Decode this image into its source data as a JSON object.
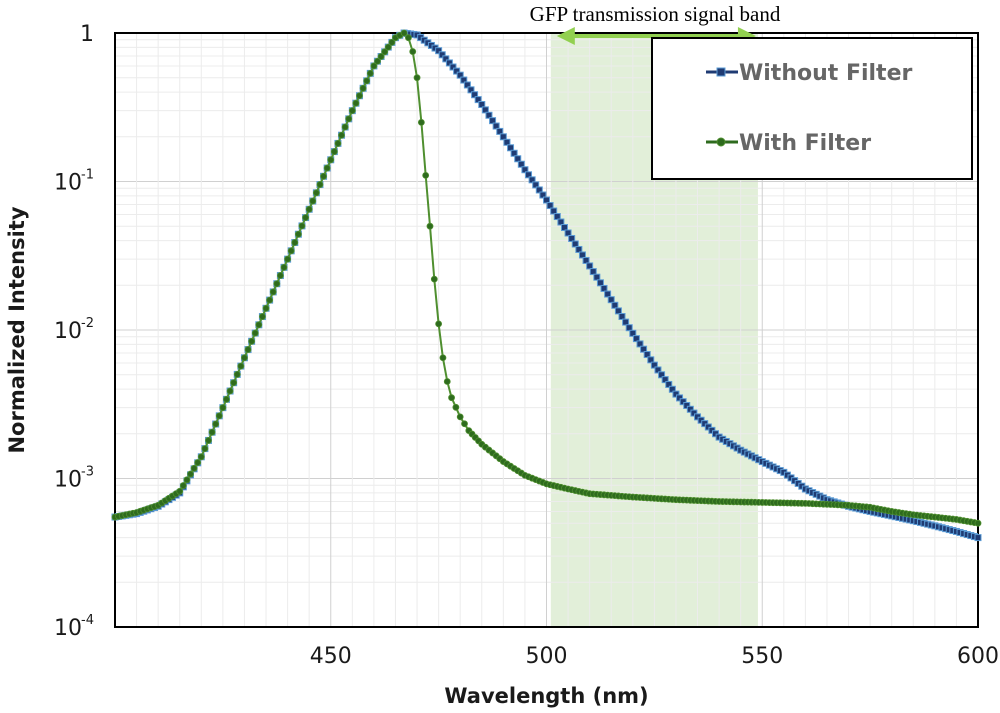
{
  "chart_data": {
    "type": "line",
    "y_scale": "log",
    "xlabel": "Wavelength (nm)",
    "ylabel": "Normalized Intensity",
    "xlim": [
      400,
      600
    ],
    "ylim": [
      0.0001,
      1
    ],
    "x_ticks": [
      450,
      500,
      550,
      600
    ],
    "y_ticks": [
      {
        "value": 1,
        "base": "1",
        "exp": ""
      },
      {
        "value": 0.1,
        "base": "10",
        "exp": "-1"
      },
      {
        "value": 0.01,
        "base": "10",
        "exp": "-2"
      },
      {
        "value": 0.001,
        "base": "10",
        "exp": "-3"
      },
      {
        "value": 0.0001,
        "base": "10",
        "exp": "-4"
      }
    ],
    "grid": true,
    "legend_position": "top-right",
    "annotation": {
      "label": "GFP transmission signal band",
      "x_range": [
        501,
        549
      ],
      "band_color": "#e2efd9",
      "arrow_color": "#92d050"
    },
    "series": [
      {
        "name": "Without Filter",
        "color": "#1f3b73",
        "outline": "#5b9bd5",
        "marker": "square",
        "x": [
          400,
          405,
          410,
          415,
          420,
          425,
          430,
          435,
          440,
          445,
          450,
          455,
          460,
          465,
          467,
          470,
          475,
          480,
          485,
          490,
          495,
          500,
          505,
          510,
          515,
          520,
          525,
          530,
          535,
          540,
          545,
          550,
          555,
          560,
          565,
          570,
          575,
          580,
          585,
          590,
          595,
          600
        ],
        "y": [
          0.00055,
          0.00058,
          0.00065,
          0.0008,
          0.0014,
          0.003,
          0.0065,
          0.014,
          0.03,
          0.065,
          0.14,
          0.3,
          0.6,
          0.93,
          1.0,
          0.97,
          0.76,
          0.52,
          0.33,
          0.2,
          0.12,
          0.075,
          0.045,
          0.027,
          0.016,
          0.0095,
          0.0058,
          0.0037,
          0.0026,
          0.0019,
          0.00155,
          0.0013,
          0.0011,
          0.00085,
          0.00072,
          0.00065,
          0.0006,
          0.00056,
          0.00052,
          0.00048,
          0.00044,
          0.0004
        ]
      },
      {
        "name": "With Filter",
        "color": "#2e6b1e",
        "outline": "#4f8f2f",
        "marker": "circle",
        "x": [
          400,
          405,
          410,
          415,
          420,
          425,
          430,
          435,
          440,
          445,
          450,
          455,
          460,
          465,
          467,
          468,
          469,
          470,
          471,
          472,
          473,
          474,
          475,
          476,
          477,
          478,
          480,
          482,
          485,
          490,
          495,
          500,
          505,
          510,
          520,
          530,
          540,
          550,
          560,
          570,
          575,
          580,
          585,
          590,
          595,
          600
        ],
        "y": [
          0.00055,
          0.00059,
          0.00066,
          0.00082,
          0.0014,
          0.003,
          0.0065,
          0.014,
          0.03,
          0.065,
          0.14,
          0.3,
          0.6,
          0.93,
          1.0,
          0.93,
          0.75,
          0.5,
          0.25,
          0.11,
          0.05,
          0.022,
          0.011,
          0.0065,
          0.0045,
          0.0035,
          0.0026,
          0.0021,
          0.0017,
          0.0013,
          0.00105,
          0.00092,
          0.00085,
          0.00079,
          0.00075,
          0.00072,
          0.0007,
          0.00069,
          0.00068,
          0.00066,
          0.00064,
          0.0006,
          0.00057,
          0.00055,
          0.00053,
          0.0005
        ]
      }
    ]
  }
}
